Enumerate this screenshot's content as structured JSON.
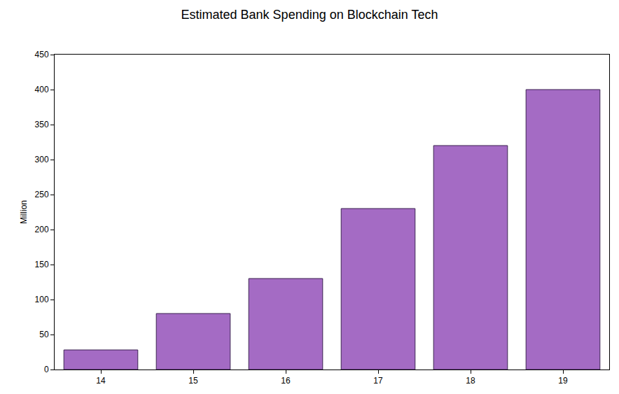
{
  "chart_data": {
    "type": "bar",
    "title": "Estimated Bank Spending on Blockchain Tech",
    "y_label": "Million",
    "categories": [
      "14",
      "15",
      "16",
      "17",
      "18",
      "19"
    ],
    "values": [
      28,
      80,
      130,
      230,
      320,
      400
    ],
    "color": "#a46bc4",
    "ylim": [
      0,
      450
    ],
    "yticks": [
      0,
      50,
      100,
      150,
      200,
      250,
      300,
      350,
      400,
      450
    ],
    "grid": false
  }
}
